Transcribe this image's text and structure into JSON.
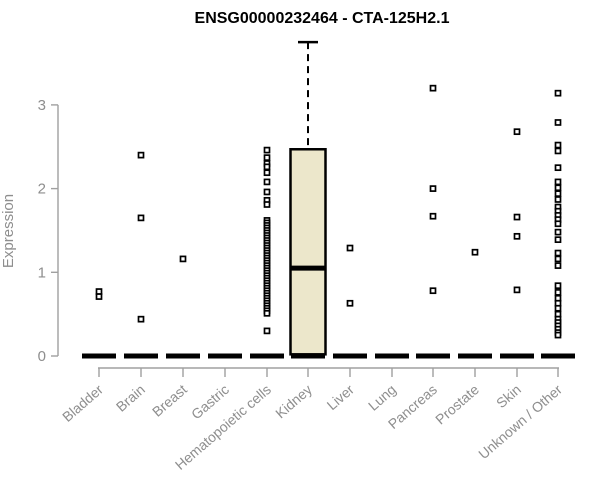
{
  "chart_data": {
    "type": "boxplot",
    "title": "ENSG00000232464 - CTA-125H2.1",
    "xlabel": "",
    "ylabel": "Expression",
    "yticks": [
      0,
      1,
      2,
      3
    ],
    "ylim": [
      0,
      3.9
    ],
    "grid": false,
    "legend": "none",
    "colors": {
      "axis": "#a0a0a0",
      "axis_text": "#8e8e8e",
      "title_text": "#000000",
      "box_fill": "#ece7cb",
      "box_stroke": "#000000",
      "point_stroke": "#000000",
      "point_fill": "#ffffff",
      "zero_bar": "#000000",
      "background": "#ffffff"
    },
    "categories": [
      "Bladder",
      "Brain",
      "Breast",
      "Gastric",
      "Hematopoietic cells",
      "Kidney",
      "Liver",
      "Lung",
      "Pancreas",
      "Prostate",
      "Skin",
      "Unknown / Other"
    ],
    "series": [
      {
        "category": "Bladder",
        "zero_bar_value": 0,
        "box": null,
        "points": [
          0.77,
          0.71
        ]
      },
      {
        "category": "Brain",
        "zero_bar_value": 0,
        "box": null,
        "points": [
          2.4,
          1.65,
          0.44
        ]
      },
      {
        "category": "Breast",
        "zero_bar_value": 0,
        "box": null,
        "points": [
          1.16
        ]
      },
      {
        "category": "Gastric",
        "zero_bar_value": 0,
        "box": null,
        "points": []
      },
      {
        "category": "Hematopoietic cells",
        "zero_bar_value": 0,
        "box": null,
        "points": [
          2.46,
          2.37,
          2.3,
          2.26,
          2.19,
          2.08,
          1.96,
          1.86,
          1.81,
          1.62,
          1.59,
          1.56,
          1.53,
          1.5,
          1.47,
          1.44,
          1.41,
          1.38,
          1.35,
          1.32,
          1.29,
          1.26,
          1.23,
          1.2,
          1.17,
          1.14,
          1.11,
          1.08,
          1.05,
          1.02,
          0.99,
          0.96,
          0.93,
          0.9,
          0.87,
          0.84,
          0.81,
          0.78,
          0.75,
          0.72,
          0.69,
          0.66,
          0.63,
          0.6,
          0.57,
          0.54,
          0.51,
          0.3
        ]
      },
      {
        "category": "Kidney",
        "zero_bar_value": 0,
        "box": {
          "q1": 0.02,
          "median": 1.05,
          "q3": 2.47,
          "whisker_high": 3.75
        },
        "points": []
      },
      {
        "category": "Liver",
        "zero_bar_value": 0,
        "box": null,
        "points": [
          1.29,
          0.63
        ]
      },
      {
        "category": "Lung",
        "zero_bar_value": 0,
        "box": null,
        "points": []
      },
      {
        "category": "Pancreas",
        "zero_bar_value": 0,
        "box": null,
        "points": [
          3.2,
          2.0,
          1.67,
          0.78
        ]
      },
      {
        "category": "Prostate",
        "zero_bar_value": 0,
        "box": null,
        "points": [
          1.24
        ]
      },
      {
        "category": "Skin",
        "zero_bar_value": 0,
        "box": null,
        "points": [
          2.68,
          1.66,
          1.43,
          0.79
        ]
      },
      {
        "category": "Unknown / Other",
        "zero_bar_value": 0,
        "box": null,
        "points": [
          3.14,
          2.79,
          2.52,
          2.45,
          2.25,
          2.08,
          2.01,
          1.94,
          1.87,
          1.78,
          1.73,
          1.68,
          1.63,
          1.58,
          1.48,
          1.39,
          1.23,
          1.16,
          1.08,
          0.84,
          0.76,
          0.69,
          0.63,
          0.57,
          0.5,
          0.44,
          0.4,
          0.36,
          0.32,
          0.28,
          0.25
        ]
      }
    ]
  }
}
